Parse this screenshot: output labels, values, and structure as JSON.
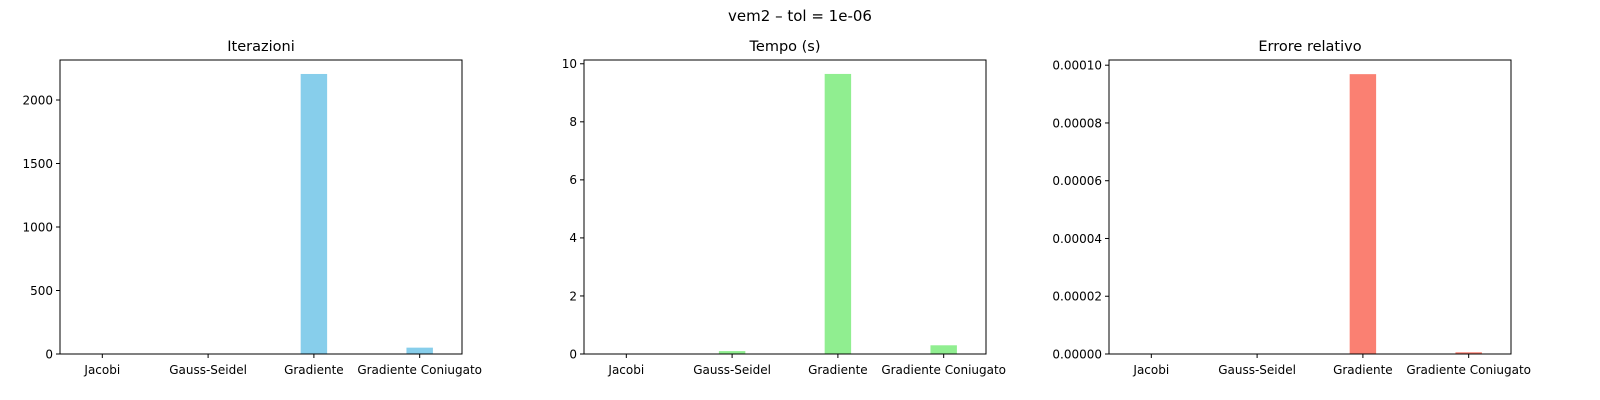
{
  "figure": {
    "suptitle": "vem2 – tol = 1e-06"
  },
  "chart_data": [
    {
      "type": "bar",
      "title": "Iterazioni",
      "xlabel": "",
      "ylabel": "",
      "categories": [
        "Jacobi",
        "Gauss-Seidel",
        "Gradiente",
        "Gradiente Coniugato"
      ],
      "values": [
        1,
        1,
        2205,
        50
      ],
      "ylim": [
        0,
        2315
      ],
      "yticks": [
        0,
        500,
        1000,
        1500,
        2000
      ],
      "ytick_labels": [
        "0",
        "500",
        "1000",
        "1500",
        "2000"
      ],
      "color": "#87CEEB",
      "grid": false
    },
    {
      "type": "bar",
      "title": "Tempo (s)",
      "xlabel": "",
      "ylabel": "",
      "categories": [
        "Jacobi",
        "Gauss-Seidel",
        "Gradiente",
        "Gradiente Coniugato"
      ],
      "values": [
        0.01,
        0.1,
        9.65,
        0.3
      ],
      "ylim": [
        0,
        10.13
      ],
      "yticks": [
        0,
        2,
        4,
        6,
        8,
        10
      ],
      "ytick_labels": [
        "0",
        "2",
        "4",
        "6",
        "8",
        "10"
      ],
      "color": "#90EE90",
      "grid": false
    },
    {
      "type": "bar",
      "title": "Errore relativo",
      "xlabel": "",
      "ylabel": "",
      "categories": [
        "Jacobi",
        "Gauss-Seidel",
        "Gradiente",
        "Gradiente Coniugato"
      ],
      "values": [
        1e-07,
        1e-07,
        9.69e-05,
        6e-07
      ],
      "ylim": [
        0,
        0.0001018
      ],
      "yticks": [
        0,
        2e-05,
        4e-05,
        6e-05,
        8e-05,
        0.0001
      ],
      "ytick_labels": [
        "0.00000",
        "0.00002",
        "0.00004",
        "0.00006",
        "0.00008",
        "0.00010"
      ],
      "color": "#FA8072",
      "grid": false
    }
  ]
}
